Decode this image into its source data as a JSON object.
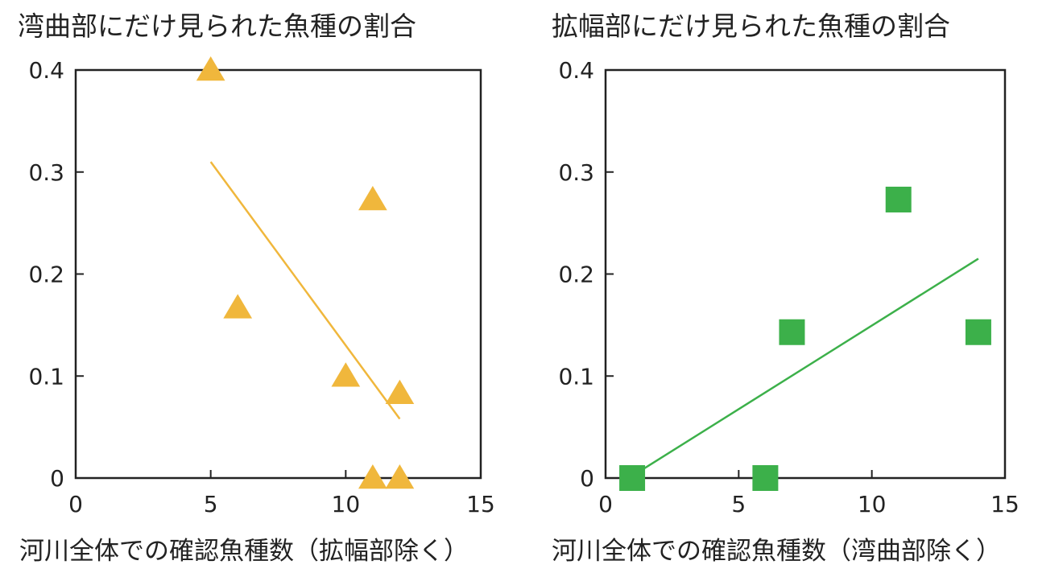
{
  "chart_data": [
    {
      "type": "scatter",
      "title": "湾曲部にだけ見られた魚種の割合",
      "xlabel": "河川全体での確認魚種数（拡幅部除く）",
      "ylabel": "",
      "xlim": [
        0,
        15
      ],
      "ylim": [
        0,
        0.4
      ],
      "x_ticks": [
        "0",
        "5",
        "10",
        "15"
      ],
      "y_ticks": [
        "0",
        "0.1",
        "0.2",
        "0.3",
        "0.4"
      ],
      "grid": false,
      "marker": "triangle",
      "color": "#F0B73C",
      "points": [
        {
          "x": 5,
          "y": 0.4
        },
        {
          "x": 6,
          "y": 0.167
        },
        {
          "x": 10,
          "y": 0.1
        },
        {
          "x": 11,
          "y": 0.273
        },
        {
          "x": 11,
          "y": 0.0
        },
        {
          "x": 12,
          "y": 0.083
        },
        {
          "x": 12,
          "y": 0.0
        }
      ],
      "trendline": {
        "x": [
          5,
          12
        ],
        "y": [
          0.31,
          0.058
        ]
      }
    },
    {
      "type": "scatter",
      "title": "拡幅部にだけ見られた魚種の割合",
      "xlabel": "河川全体での確認魚種数（湾曲部除く）",
      "ylabel": "",
      "xlim": [
        0,
        15
      ],
      "ylim": [
        0,
        0.4
      ],
      "x_ticks": [
        "0",
        "5",
        "10",
        "15"
      ],
      "y_ticks": [
        "0",
        "0.1",
        "0.2",
        "0.3",
        "0.4"
      ],
      "grid": false,
      "marker": "square",
      "color": "#3CB04A",
      "points": [
        {
          "x": 1,
          "y": 0.0
        },
        {
          "x": 6,
          "y": 0.0
        },
        {
          "x": 7,
          "y": 0.143
        },
        {
          "x": 11,
          "y": 0.273
        },
        {
          "x": 14,
          "y": 0.143
        }
      ],
      "trendline": {
        "x": [
          1,
          14
        ],
        "y": [
          0.002,
          0.215
        ]
      }
    }
  ]
}
